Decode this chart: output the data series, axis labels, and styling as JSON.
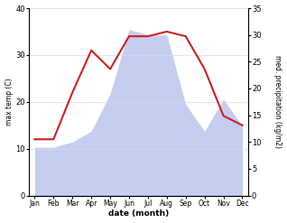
{
  "months": [
    "Jan",
    "Feb",
    "Mar",
    "Apr",
    "May",
    "Jun",
    "Jul",
    "Aug",
    "Sep",
    "Oct",
    "Nov",
    "Dec"
  ],
  "temperature": [
    12,
    12,
    22,
    31,
    27,
    34,
    34,
    35,
    34,
    27,
    17,
    15
  ],
  "precipitation": [
    9,
    9,
    10,
    12,
    19,
    31,
    30,
    30,
    17,
    12,
    18,
    13
  ],
  "temp_color": "#cc2222",
  "precip_color_fill": "#c5cef0",
  "left_ylim": [
    0,
    40
  ],
  "right_ylim": [
    0,
    35
  ],
  "left_yticks": [
    0,
    10,
    20,
    30,
    40
  ],
  "right_yticks": [
    0,
    5,
    10,
    15,
    20,
    25,
    30,
    35
  ],
  "left_ylabel": "max temp (C)",
  "right_ylabel": "med. precipitation (kg/m2)",
  "xlabel": "date (month)",
  "grid_color": "#dddddd",
  "background_color": "#ffffff"
}
